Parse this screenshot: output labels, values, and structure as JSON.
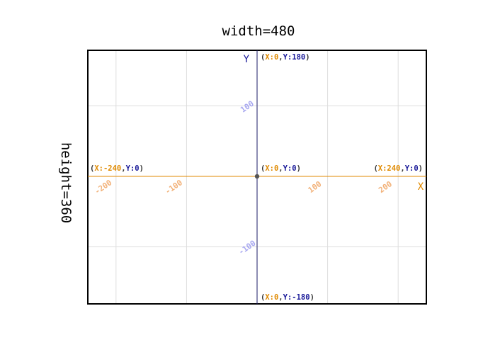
{
  "diagram": {
    "width_label": "width=480",
    "height_label": "height=360",
    "x_axis_name": "X",
    "y_axis_name": "Y",
    "colors": {
      "frame": "#000000",
      "grid": "#dddddd",
      "x_axis": "#e08a00",
      "y_axis": "#1a1a66",
      "x_value": "#e08a00",
      "y_value": "#1a1a99",
      "paren": "#333333",
      "x_tick": "#f2b27a",
      "y_tick": "#a8a8f0",
      "origin": "#555555"
    },
    "stage_range": {
      "x": [
        -240,
        240
      ],
      "y": [
        -180,
        180
      ]
    },
    "grid_step": 100,
    "x_ticks": [
      {
        "value": -200,
        "label": "-200"
      },
      {
        "value": -100,
        "label": "-100"
      },
      {
        "value": 100,
        "label": "100"
      },
      {
        "value": 200,
        "label": "200"
      }
    ],
    "y_ticks": [
      {
        "value": 100,
        "label": "100"
      },
      {
        "value": -100,
        "label": "-100"
      }
    ],
    "points": [
      {
        "name": "top",
        "x": 0,
        "y": 180,
        "x_text": "X:0",
        "y_text": "Y:180"
      },
      {
        "name": "origin",
        "x": 0,
        "y": 0,
        "x_text": "X:0",
        "y_text": "Y:0"
      },
      {
        "name": "left",
        "x": -240,
        "y": 0,
        "x_text": "X:-240",
        "y_text": "Y:0"
      },
      {
        "name": "right",
        "x": 240,
        "y": 0,
        "x_text": "X:240",
        "y_text": "Y:0"
      },
      {
        "name": "bottom",
        "x": 0,
        "y": -180,
        "x_text": "X:0",
        "y_text": "Y:-180"
      }
    ]
  }
}
